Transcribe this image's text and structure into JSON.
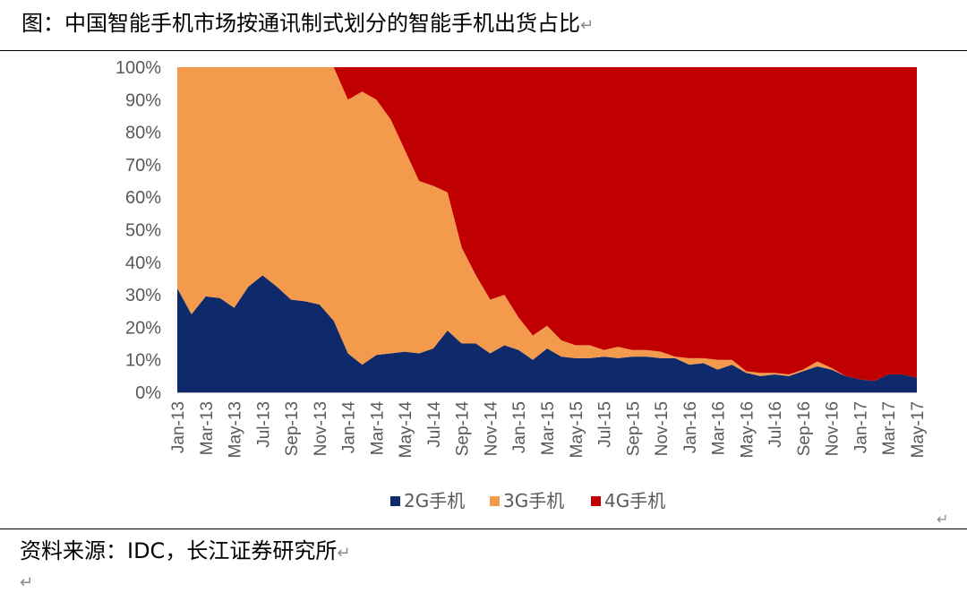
{
  "caption": "图：中国智能手机市场按通讯制式划分的智能手机出货占比",
  "source": "资料来源：IDC，长江证券研究所",
  "chart_data": {
    "type": "area",
    "stacked": "percent",
    "ylim": [
      0,
      100
    ],
    "yticks": [
      "0%",
      "10%",
      "20%",
      "30%",
      "40%",
      "50%",
      "60%",
      "70%",
      "80%",
      "90%",
      "100%"
    ],
    "x": [
      "Jan-13",
      "Feb-13",
      "Mar-13",
      "Apr-13",
      "May-13",
      "Jun-13",
      "Jul-13",
      "Aug-13",
      "Sep-13",
      "Oct-13",
      "Nov-13",
      "Dec-13",
      "Jan-14",
      "Feb-14",
      "Mar-14",
      "Apr-14",
      "May-14",
      "Jun-14",
      "Jul-14",
      "Aug-14",
      "Sep-14",
      "Oct-14",
      "Nov-14",
      "Dec-14",
      "Jan-15",
      "Feb-15",
      "Mar-15",
      "Apr-15",
      "May-15",
      "Jun-15",
      "Jul-15",
      "Aug-15",
      "Sep-15",
      "Oct-15",
      "Nov-15",
      "Dec-15",
      "Jan-16",
      "Feb-16",
      "Mar-16",
      "Apr-16",
      "May-16",
      "Jun-16",
      "Jul-16",
      "Aug-16",
      "Sep-16",
      "Oct-16",
      "Nov-16",
      "Dec-16",
      "Jan-17",
      "Feb-17",
      "Mar-17",
      "Apr-17",
      "May-17"
    ],
    "xtick_labels": [
      "Jan-13",
      "Mar-13",
      "May-13",
      "Jul-13",
      "Sep-13",
      "Nov-13",
      "Jan-14",
      "Mar-14",
      "May-14",
      "Jul-14",
      "Sep-14",
      "Nov-14",
      "Jan-15",
      "Mar-15",
      "May-15",
      "Jul-15",
      "Sep-15",
      "Nov-15",
      "Jan-16",
      "Mar-16",
      "May-16",
      "Jul-16",
      "Sep-16",
      "Nov-16",
      "Jan-17",
      "Mar-17",
      "May-17"
    ],
    "series": [
      {
        "name": "2G手机",
        "color": "#0e2a6a",
        "values": [
          32,
          24,
          29.5,
          29,
          26,
          32.5,
          36,
          32.5,
          28.5,
          28,
          27,
          22,
          12,
          8.5,
          11.5,
          12,
          12.5,
          12,
          13.5,
          19,
          15,
          15,
          12,
          14.5,
          13,
          10,
          13.5,
          11,
          10.5,
          10.5,
          11,
          10.5,
          11,
          11,
          10.5,
          10.5,
          8.5,
          9,
          7,
          8.5,
          6,
          5,
          5.5,
          5,
          6.5,
          8,
          7,
          5,
          4,
          3.5,
          5.5,
          5.5,
          4.5
        ]
      },
      {
        "name": "3G手机",
        "color": "#f39a4c",
        "values": [
          68,
          76,
          70.5,
          71,
          74,
          67.5,
          64,
          67.5,
          71.5,
          72,
          73,
          78,
          78,
          84,
          78.5,
          72,
          62,
          53,
          50,
          42.5,
          29.5,
          21,
          16.5,
          15.5,
          10,
          7.5,
          7,
          5,
          4,
          4,
          2,
          3.5,
          2,
          2,
          2,
          0.5,
          2,
          1.5,
          3,
          1.5,
          0.5,
          1,
          0.5,
          0.5,
          0.5,
          1.5,
          0.5,
          0,
          0,
          0,
          0,
          0,
          0
        ]
      },
      {
        "name": "4G手机",
        "color": "#c00000",
        "values": [
          0,
          0,
          0,
          0,
          0,
          0,
          0,
          0,
          0,
          0,
          0,
          0,
          10,
          7.5,
          10,
          16,
          25.5,
          35,
          36.5,
          38.5,
          55.5,
          64,
          71.5,
          70,
          77,
          82.5,
          79.5,
          84,
          85.5,
          85.5,
          87,
          86,
          87,
          87,
          87.5,
          89,
          89.5,
          89.5,
          90,
          90,
          93.5,
          94,
          94,
          94.5,
          93,
          90.5,
          92.5,
          95,
          96,
          96.5,
          94.5,
          94.5,
          95.5
        ]
      }
    ],
    "legend_position": "bottom"
  }
}
